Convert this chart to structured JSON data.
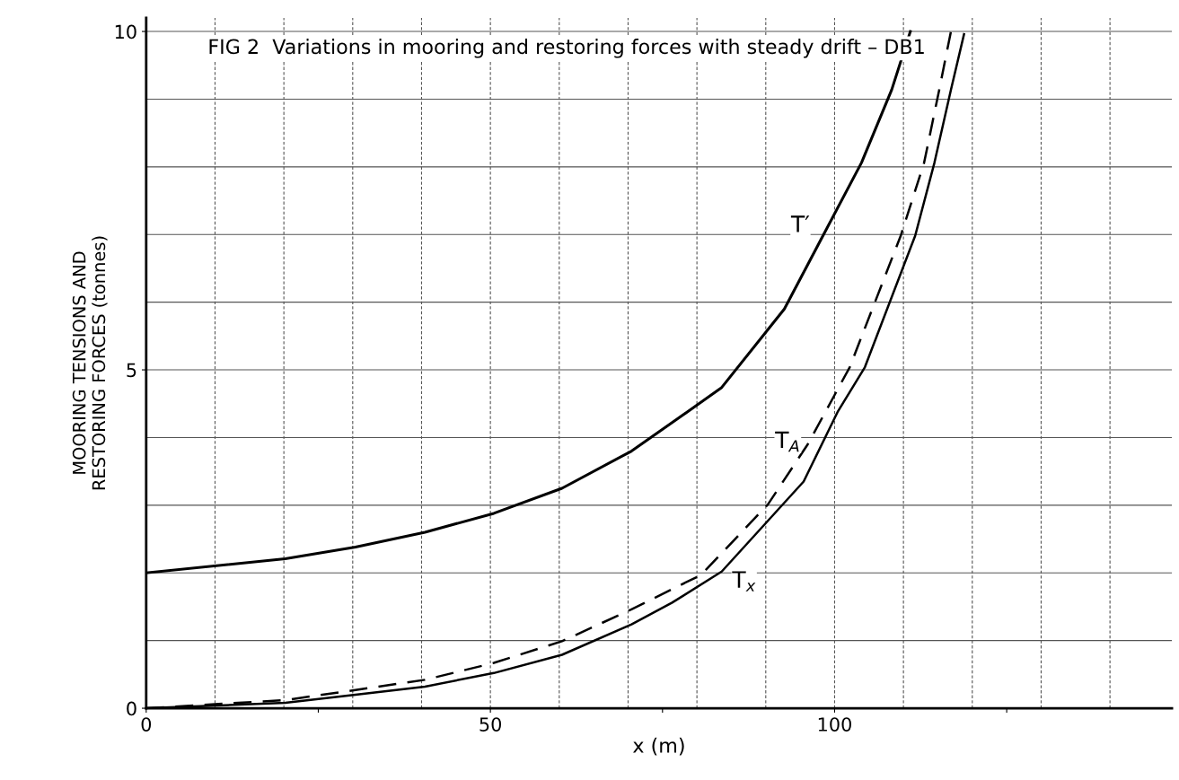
{
  "chart_data": {
    "type": "line",
    "title": "FIG 2  Variations in mooring and restoring forces with steady drift – DB1",
    "xlabel": "x (m)",
    "ylabel": "MOORING TENSIONS AND\nRESTORING FORCES (tonnes)",
    "xlim": [
      0,
      149
    ],
    "ylim": [
      0,
      10.2
    ],
    "xticks": [
      0,
      {
        "value": 25,
        "label": null
      },
      50,
      {
        "value": 75,
        "label": null
      },
      100,
      {
        "value": 125,
        "label": null
      }
    ],
    "yticks": [
      0,
      5,
      10
    ],
    "grid": true,
    "legend": false,
    "marker": "none",
    "series": [
      {
        "name": "T′",
        "color": "#000000",
        "line_style": "solid",
        "x": [
          0,
          20.2,
          30.4,
          40.5,
          50.5,
          60.4,
          70.5,
          76.4,
          83.6,
          92.7,
          98.3,
          103.9,
          108.3,
          111
        ],
        "values": [
          2.0,
          2.21,
          2.38,
          2.6,
          2.88,
          3.25,
          3.8,
          4.22,
          4.74,
          5.9,
          6.98,
          8.06,
          9.14,
          10.0
        ]
      },
      {
        "name": "T$_{A}$",
        "color": "#000000",
        "line_style": "dashed",
        "x": [
          0,
          20.2,
          30.4,
          40.5,
          50.5,
          60.4,
          70.5,
          76.4,
          80.6,
          90.3,
          96.1,
          102.2,
          109.6,
          113.0,
          115.2,
          116.9
        ],
        "values": [
          0,
          0.12,
          0.27,
          0.42,
          0.67,
          0.99,
          1.46,
          1.76,
          1.97,
          3.01,
          3.9,
          5.04,
          6.98,
          8.06,
          9.14,
          10.0
        ]
      },
      {
        "name": "T$_{x}$",
        "color": "#000000",
        "line_style": "solid",
        "x": [
          0,
          20.2,
          30.4,
          40.5,
          50.5,
          60.4,
          70.5,
          76.4,
          83.6,
          95.5,
          100.5,
          104.4,
          111.7,
          114.5,
          116.9,
          118.8
        ],
        "values": [
          0,
          0.08,
          0.2,
          0.32,
          0.52,
          0.79,
          1.24,
          1.56,
          2.02,
          3.35,
          4.39,
          5.04,
          6.98,
          8.06,
          9.14,
          9.96
        ]
      }
    ]
  }
}
